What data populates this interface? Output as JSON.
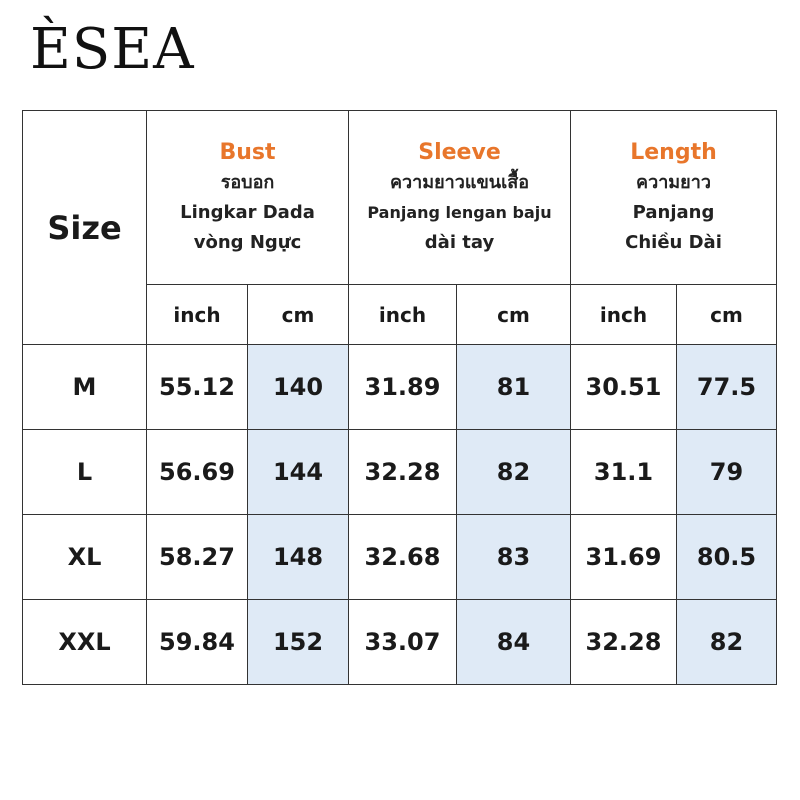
{
  "brand": {
    "logo_text": "ÈSEA"
  },
  "table": {
    "size_header": "Size",
    "groups": [
      {
        "title": "Bust",
        "lines": [
          "รอบอก",
          "Lingkar Dada",
          "vòng Ngực"
        ]
      },
      {
        "title": "Sleeve",
        "lines": [
          "ความยาวแขนเสื้อ",
          "Panjang lengan baju",
          "dài tay"
        ]
      },
      {
        "title": "Length",
        "lines": [
          "ความยาว",
          "Panjang",
          "Chiều Dài"
        ]
      }
    ],
    "units": [
      "inch",
      "cm",
      "inch",
      "cm",
      "inch",
      "cm"
    ],
    "rows": [
      {
        "size": "M",
        "values": [
          "55.12",
          "140",
          "31.89",
          "81",
          "30.51",
          "77.5"
        ]
      },
      {
        "size": "L",
        "values": [
          "56.69",
          "144",
          "32.28",
          "82",
          "31.1",
          "79"
        ]
      },
      {
        "size": "XL",
        "values": [
          "58.27",
          "148",
          "32.68",
          "83",
          "31.69",
          "80.5"
        ]
      },
      {
        "size": "XXL",
        "values": [
          "59.84",
          "152",
          "33.07",
          "84",
          "32.28",
          "82"
        ]
      }
    ],
    "colors": {
      "title_accent": "#e8762b",
      "cm_highlight": "#dfeaf6"
    }
  }
}
